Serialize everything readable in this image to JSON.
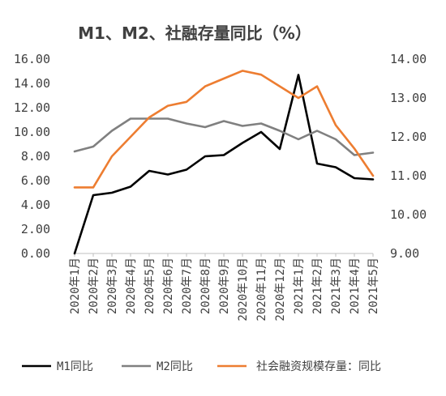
{
  "chart_data": {
    "type": "line",
    "title": "M1、M2、社融存量同比（%）",
    "categories": [
      "2020年1月",
      "2020年2月",
      "2020年3月",
      "2020年4月",
      "2020年5月",
      "2020年6月",
      "2020年7月",
      "2020年8月",
      "2020年9月",
      "2020年10月",
      "2020年11月",
      "2020年12月",
      "2021年1月",
      "2021年2月",
      "2021年3月",
      "2021年4月",
      "2021年5月"
    ],
    "y_left": {
      "ylim": [
        0,
        16
      ],
      "ticks": [
        "0.00",
        "2.00",
        "4.00",
        "6.00",
        "8.00",
        "10.00",
        "12.00",
        "14.00",
        "16.00"
      ]
    },
    "y_right": {
      "ylim": [
        9,
        14
      ],
      "ticks": [
        "9.00",
        "10.00",
        "11.00",
        "12.00",
        "13.00",
        "14.00"
      ]
    },
    "series": [
      {
        "name": "M1同比",
        "axis": "left",
        "color": "#000000",
        "values": [
          0.0,
          4.8,
          5.0,
          5.5,
          6.8,
          6.5,
          6.9,
          8.0,
          8.1,
          9.1,
          10.0,
          8.6,
          14.7,
          7.4,
          7.1,
          6.2,
          6.1
        ]
      },
      {
        "name": "M2同比",
        "axis": "left",
        "color": "#808080",
        "values": [
          8.4,
          8.8,
          10.1,
          11.1,
          11.1,
          11.1,
          10.7,
          10.4,
          10.9,
          10.5,
          10.7,
          10.1,
          9.4,
          10.1,
          9.4,
          8.1,
          8.3
        ]
      },
      {
        "name": "社会融资规模存量：同比",
        "axis": "right",
        "color": "#ED7D31",
        "values": [
          10.7,
          10.7,
          11.5,
          12.0,
          12.5,
          12.8,
          12.9,
          13.3,
          13.5,
          13.7,
          13.6,
          13.3,
          13.0,
          13.3,
          12.3,
          11.7,
          11.0
        ]
      }
    ],
    "legend_position": "bottom",
    "grid": false
  }
}
